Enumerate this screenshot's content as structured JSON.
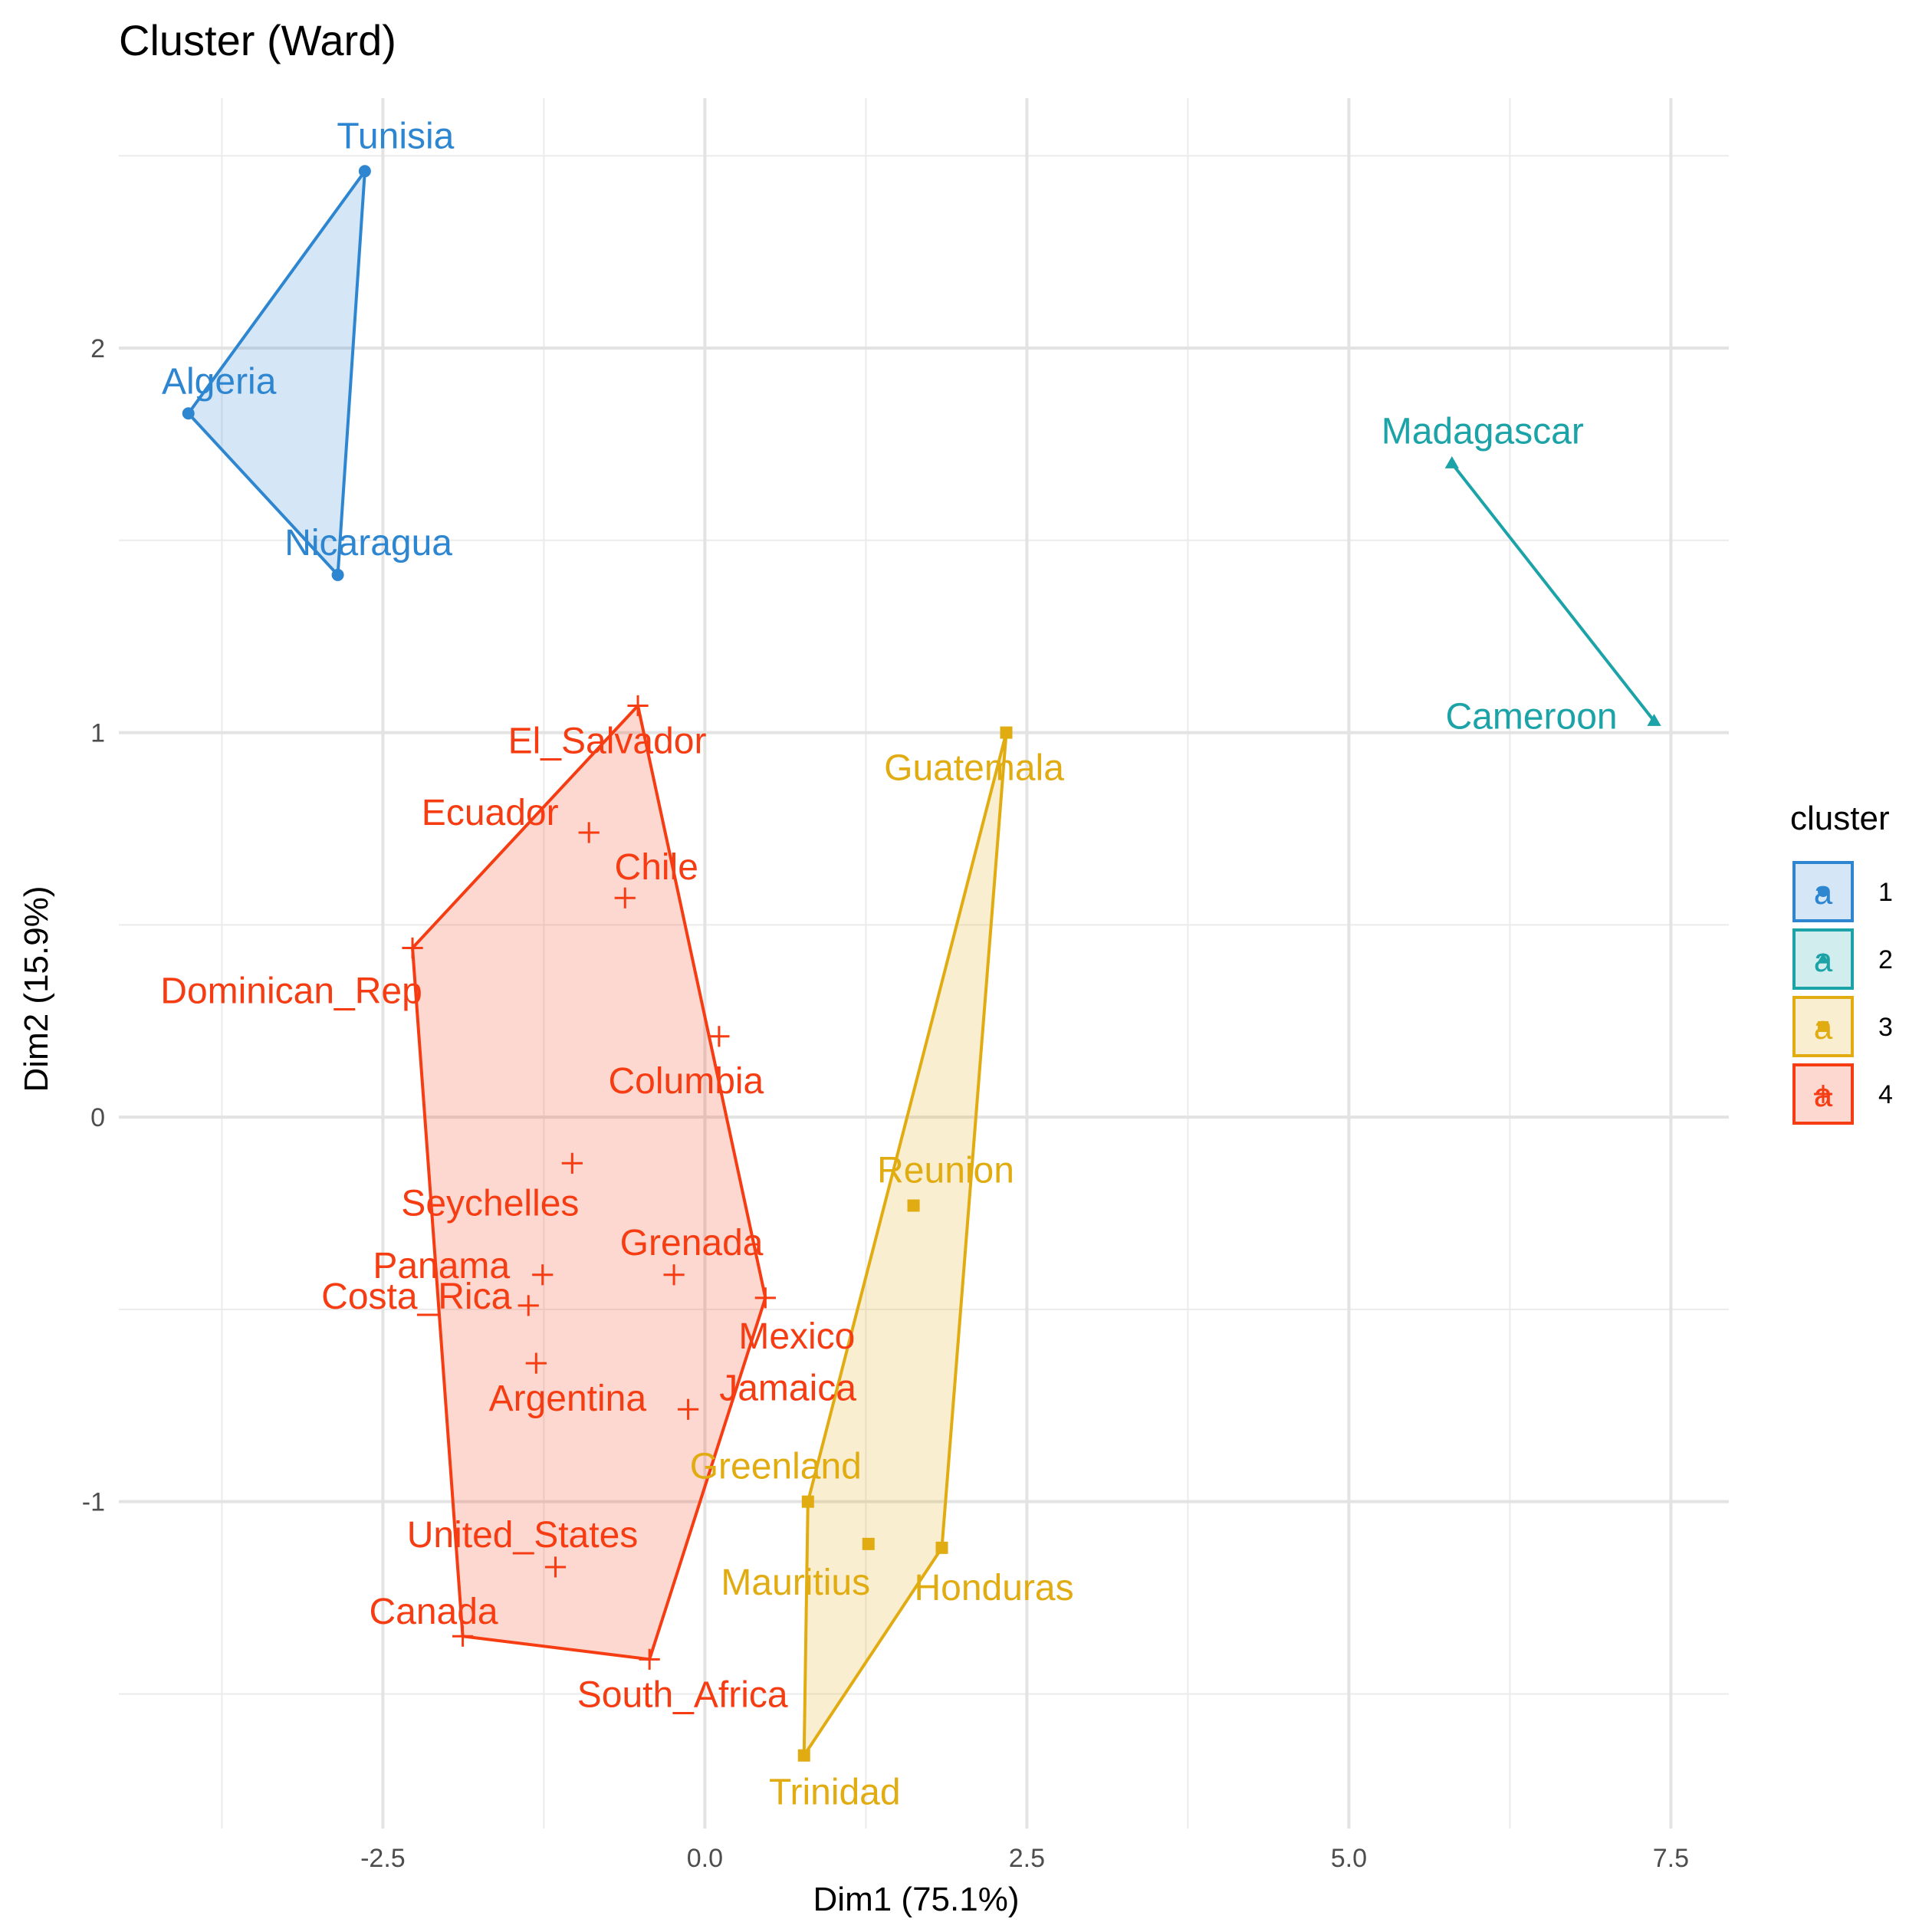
{
  "chart_data": {
    "type": "scatter",
    "title": "Cluster (Ward)",
    "xlabel": "Dim1 (75.1%)",
    "ylabel": "Dim2 (15.9%)",
    "xlim": [
      -4.55,
      7.95
    ],
    "ylim": [
      -1.85,
      2.65
    ],
    "x_ticks": [
      -2.5,
      0.0,
      2.5,
      5.0,
      7.5
    ],
    "x_tick_labels": [
      "-2.5",
      "0.0",
      "2.5",
      "5.0",
      "7.5"
    ],
    "y_ticks": [
      -1,
      0,
      1,
      2
    ],
    "y_tick_labels": [
      "-1",
      "0",
      "1",
      "2"
    ],
    "grid": true,
    "legend": {
      "title": "cluster",
      "placement": "right",
      "key_glyph": "a",
      "entries": [
        "1",
        "2",
        "3",
        "4"
      ]
    },
    "series": [
      {
        "name": "1",
        "color": "#2E86D1",
        "shape": "circle",
        "points": [
          {
            "label": "Tunisia",
            "x": -2.64,
            "y": 2.46
          },
          {
            "label": "Algeria",
            "x": -4.01,
            "y": 1.83
          },
          {
            "label": "Nicaragua",
            "x": -2.85,
            "y": 1.41
          }
        ],
        "hull": [
          "Tunisia",
          "Algeria",
          "Nicaragua"
        ]
      },
      {
        "name": "2",
        "color": "#1BA3A8",
        "shape": "triangle",
        "points": [
          {
            "label": "Madagascar",
            "x": 5.8,
            "y": 1.7
          },
          {
            "label": "Cameroon",
            "x": 7.37,
            "y": 1.03
          }
        ],
        "hull": [
          "Madagascar",
          "Cameroon"
        ]
      },
      {
        "name": "3",
        "color": "#E1AC12",
        "shape": "square",
        "points": [
          {
            "label": "Guatemala",
            "x": 2.34,
            "y": 1.0
          },
          {
            "label": "Reunion",
            "x": 1.62,
            "y": -0.23
          },
          {
            "label": "Greenland",
            "x": 0.8,
            "y": -1.0
          },
          {
            "label": "Mauritius",
            "x": 1.27,
            "y": -1.11
          },
          {
            "label": "Honduras",
            "x": 1.84,
            "y": -1.12
          },
          {
            "label": "Trinidad",
            "x": 0.77,
            "y": -1.66
          }
        ],
        "hull": [
          "Guatemala",
          "Honduras",
          "Trinidad",
          "Greenland"
        ]
      },
      {
        "name": "4",
        "color": "#F53C12",
        "shape": "plus",
        "points": [
          {
            "label": "El_Salvador",
            "x": -0.52,
            "y": 1.07
          },
          {
            "label": "Ecuador",
            "x": -0.9,
            "y": 0.74
          },
          {
            "label": "Chile",
            "x": -0.62,
            "y": 0.57
          },
          {
            "label": "Dominican_Rep",
            "x": -2.27,
            "y": 0.44
          },
          {
            "label": "Columbia",
            "x": 0.11,
            "y": 0.21
          },
          {
            "label": "Seychelles",
            "x": -1.03,
            "y": -0.12
          },
          {
            "label": "Grenada",
            "x": -0.24,
            "y": -0.41
          },
          {
            "label": "Panama",
            "x": -1.26,
            "y": -0.41
          },
          {
            "label": "Mexico",
            "x": 0.47,
            "y": -0.47
          },
          {
            "label": "Costa_Rica",
            "x": -1.37,
            "y": -0.49
          },
          {
            "label": "Argentina",
            "x": -1.31,
            "y": -0.64
          },
          {
            "label": "Jamaica",
            "x": -0.13,
            "y": -0.76
          },
          {
            "label": "United_States",
            "x": -1.16,
            "y": -1.17
          },
          {
            "label": "Canada",
            "x": -1.88,
            "y": -1.35
          },
          {
            "label": "South_Africa",
            "x": -0.43,
            "y": -1.41
          }
        ],
        "hull": [
          "El_Salvador",
          "Mexico",
          "South_Africa",
          "Canada",
          "Dominican_Rep"
        ]
      }
    ]
  }
}
